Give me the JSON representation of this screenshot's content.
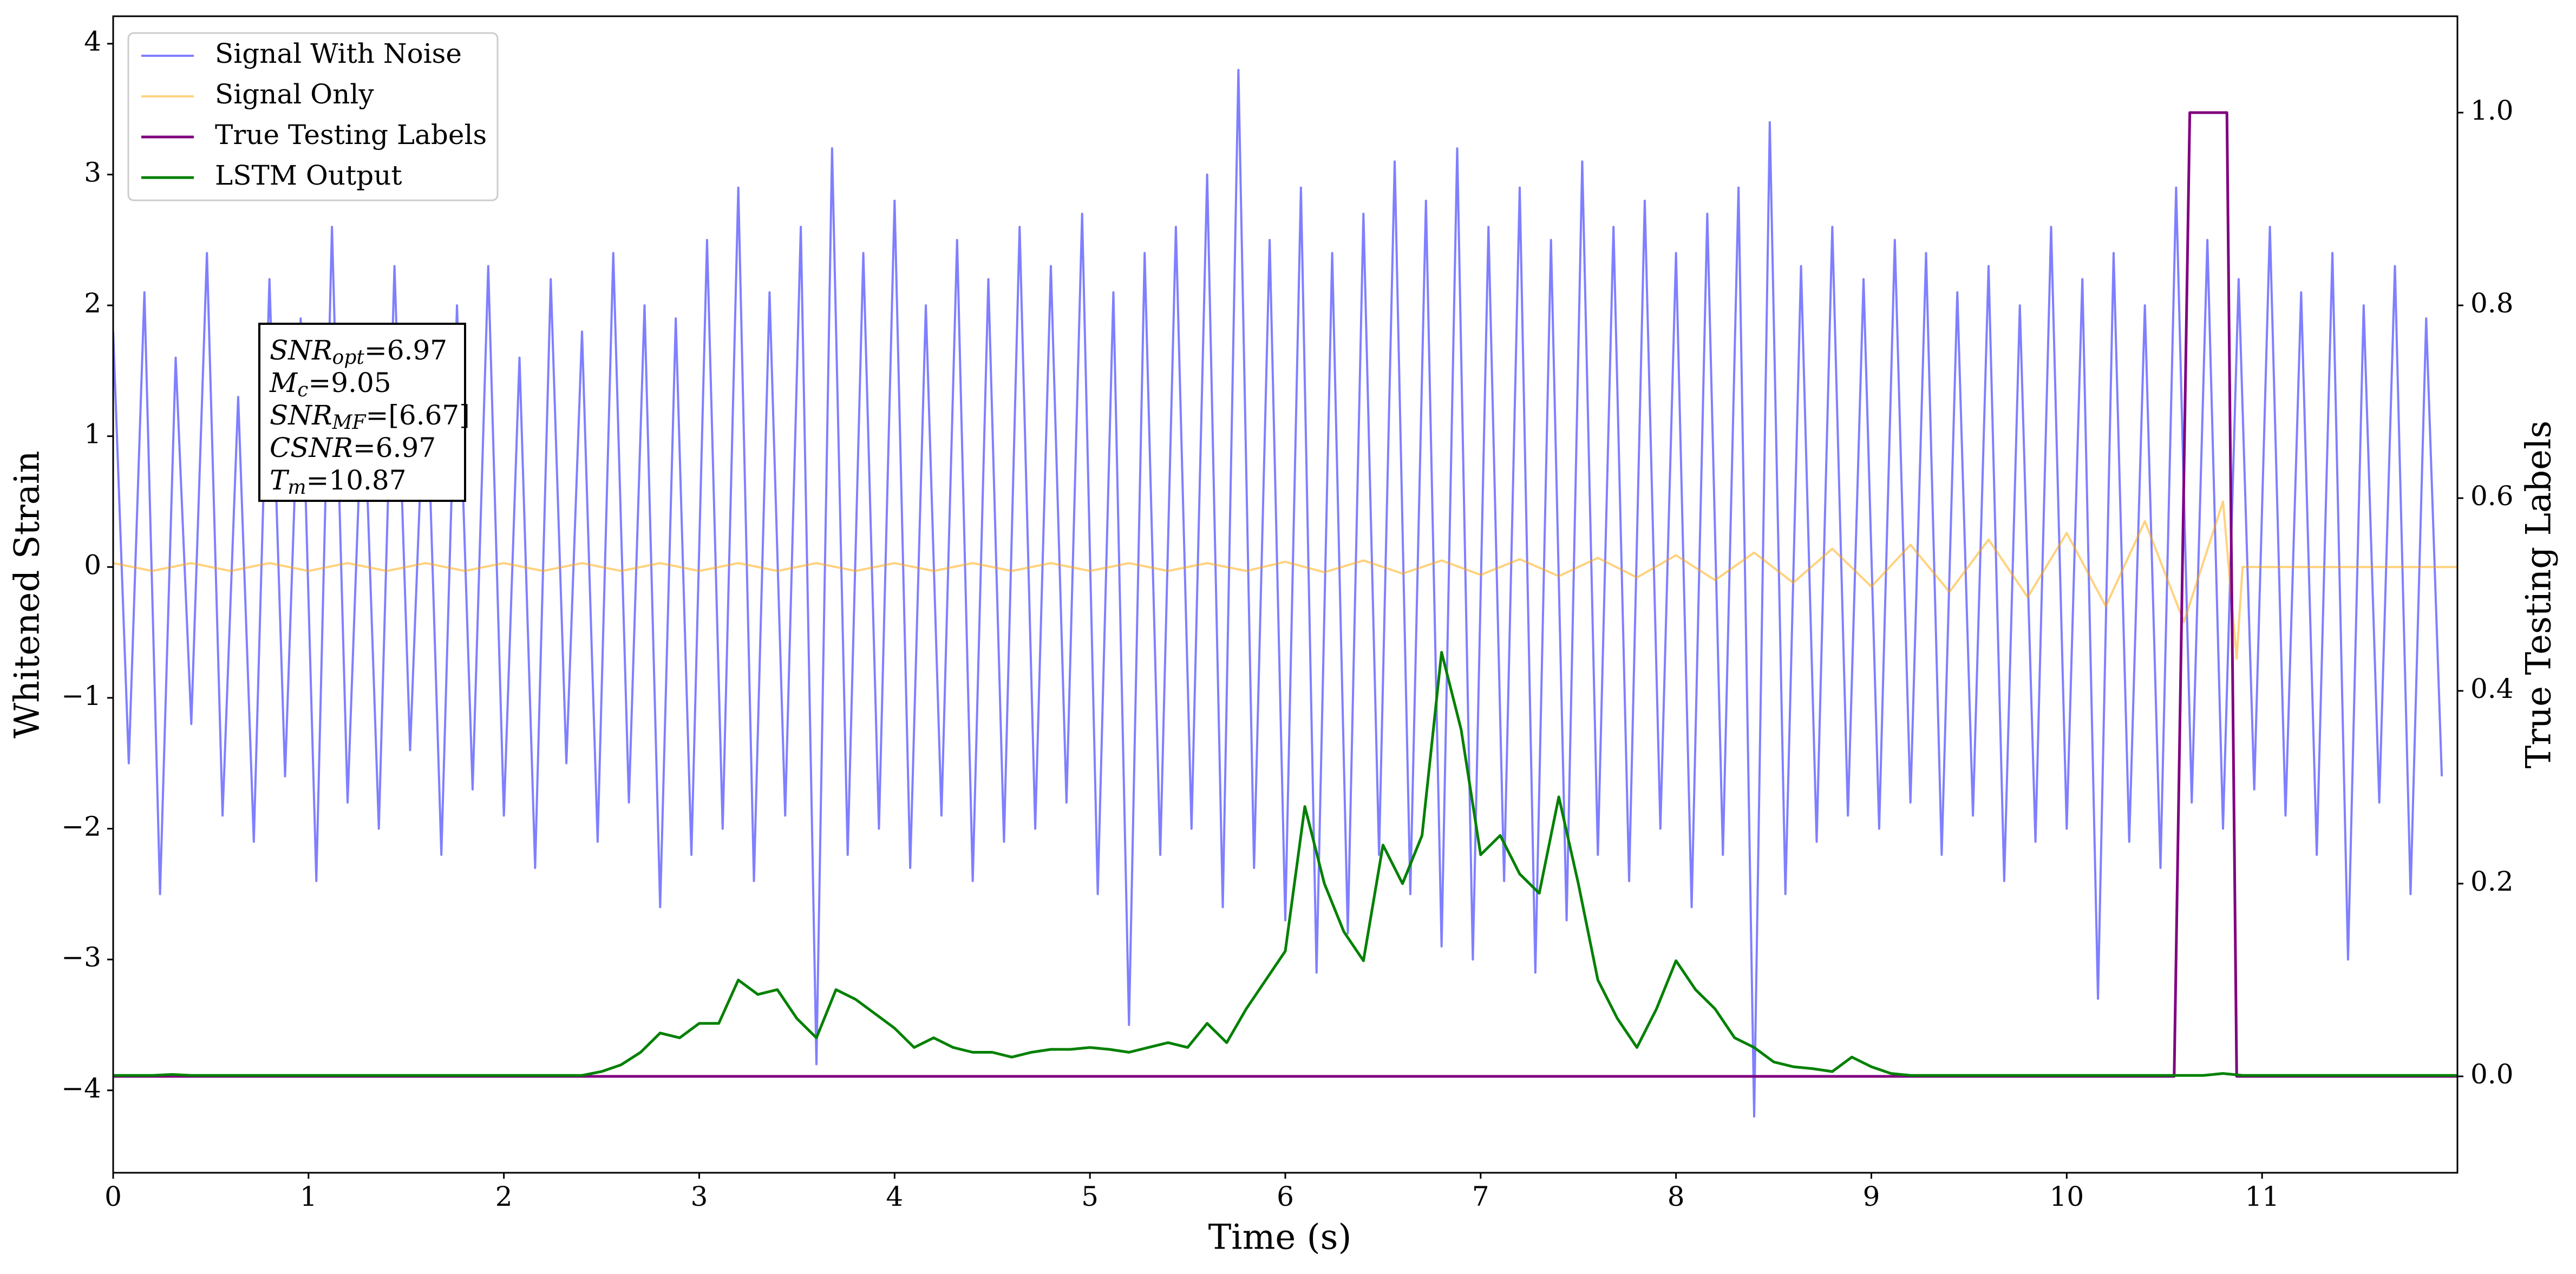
{
  "chart_data": {
    "type": "line",
    "x_label": "Time (s)",
    "y_label": "Whitened Strain",
    "y2_label": "True Testing Labels",
    "xlim": [
      0,
      12
    ],
    "xticks": [
      0,
      1,
      2,
      3,
      4,
      5,
      6,
      7,
      8,
      9,
      10,
      11
    ],
    "ylim": [
      -4.63,
      4.21
    ],
    "yticks": [
      {
        "value": -4,
        "label": "−4"
      },
      {
        "value": -3,
        "label": "−3"
      },
      {
        "value": -2,
        "label": "−2"
      },
      {
        "value": -1,
        "label": "−1"
      },
      0,
      1,
      2,
      3,
      4
    ],
    "y2lim": [
      -0.1,
      1.1
    ],
    "y2ticks": [
      {
        "value": 0,
        "label": "0.0"
      },
      0.2,
      0.4,
      0.6,
      0.8,
      {
        "value": 1,
        "label": "1.0"
      }
    ],
    "grid": false,
    "legend": "upper left",
    "annotation": [
      {
        "symbol": "SNR",
        "sub": "opt",
        "text": "=6.97"
      },
      {
        "symbol": "M",
        "sub": "c",
        "text": "=9.05"
      },
      {
        "symbol": "SNR",
        "sub": "MF",
        "text": "=[6.67]"
      },
      {
        "symbol": "CSNR",
        "text": "=6.97"
      },
      {
        "symbol": "T",
        "sub": "m",
        "text": "=10.87"
      }
    ],
    "series": [
      {
        "name": "Signal With Noise",
        "color": "blue",
        "alpha": 0.5,
        "width": 4,
        "x": [
          0,
          0.08,
          0.16,
          0.24,
          0.32,
          0.4,
          0.48,
          0.56,
          0.64,
          0.72,
          0.8,
          0.88,
          0.96,
          1.04,
          1.12,
          1.2,
          1.28,
          1.36,
          1.44,
          1.52,
          1.6,
          1.68,
          1.76,
          1.84,
          1.92,
          2,
          2.08,
          2.16,
          2.24,
          2.32,
          2.4,
          2.48,
          2.56,
          2.64,
          2.72,
          2.8,
          2.88,
          2.96,
          3.04,
          3.12,
          3.2,
          3.28,
          3.36,
          3.44,
          3.52,
          3.6,
          3.68,
          3.76,
          3.84,
          3.92,
          4,
          4.08,
          4.16,
          4.24,
          4.32,
          4.4,
          4.48,
          4.56,
          4.64,
          4.72,
          4.8,
          4.88,
          4.96,
          5.04,
          5.12,
          5.2,
          5.28,
          5.36,
          5.44,
          5.52,
          5.6,
          5.68,
          5.76,
          5.84,
          5.92,
          6,
          6.08,
          6.16,
          6.24,
          6.32,
          6.4,
          6.48,
          6.56,
          6.64,
          6.72,
          6.8,
          6.88,
          6.96,
          7.04,
          7.12,
          7.2,
          7.28,
          7.36,
          7.44,
          7.52,
          7.6,
          7.68,
          7.76,
          7.84,
          7.92,
          8,
          8.08,
          8.16,
          8.24,
          8.32,
          8.4,
          8.48,
          8.56,
          8.64,
          8.72,
          8.8,
          8.88,
          8.96,
          9.04,
          9.12,
          9.2,
          9.28,
          9.36,
          9.44,
          9.52,
          9.6,
          9.68,
          9.76,
          9.84,
          9.92,
          10,
          10.08,
          10.16,
          10.24,
          10.32,
          10.4,
          10.48,
          10.56,
          10.64,
          10.72,
          10.8,
          10.88,
          10.96,
          11.04,
          11.12,
          11.2,
          11.28,
          11.36,
          11.44,
          11.52,
          11.6,
          11.68,
          11.76,
          11.84,
          11.92
        ],
        "values": [
          1.8,
          -1.5,
          2.1,
          -2.5,
          1.6,
          -1.2,
          2.4,
          -1.9,
          1.3,
          -2.1,
          2.2,
          -1.6,
          1.9,
          -2.4,
          2.6,
          -1.8,
          1.5,
          -2.0,
          2.3,
          -1.4,
          1.7,
          -2.2,
          2.0,
          -1.7,
          2.3,
          -1.9,
          1.6,
          -2.3,
          2.2,
          -1.5,
          1.8,
          -2.1,
          2.4,
          -1.8,
          2.0,
          -2.6,
          1.9,
          -2.2,
          2.5,
          -2.0,
          2.9,
          -2.4,
          2.1,
          -1.9,
          2.6,
          -3.8,
          3.2,
          -2.2,
          2.4,
          -2.0,
          2.8,
          -2.3,
          2.0,
          -1.9,
          2.5,
          -2.4,
          2.2,
          -2.1,
          2.6,
          -2.0,
          2.3,
          -1.8,
          2.7,
          -2.5,
          2.1,
          -3.5,
          2.4,
          -2.2,
          2.6,
          -2.0,
          3.0,
          -2.6,
          3.8,
          -2.3,
          2.5,
          -2.7,
          2.9,
          -3.1,
          2.4,
          -2.8,
          2.7,
          -2.2,
          3.1,
          -2.5,
          2.8,
          -2.9,
          3.2,
          -3.0,
          2.6,
          -2.4,
          2.9,
          -3.1,
          2.5,
          -2.7,
          3.1,
          -2.2,
          2.6,
          -2.4,
          2.8,
          -2.0,
          2.4,
          -2.6,
          2.7,
          -2.2,
          2.9,
          -4.2,
          3.4,
          -2.5,
          2.3,
          -2.1,
          2.6,
          -1.9,
          2.2,
          -2.0,
          2.5,
          -1.8,
          2.4,
          -2.2,
          2.1,
          -1.9,
          2.3,
          -2.4,
          2.0,
          -2.1,
          2.6,
          -2.0,
          2.2,
          -3.3,
          2.4,
          -2.1,
          2.0,
          -2.3,
          2.9,
          -1.8,
          2.5,
          -2.0,
          2.2,
          -1.7,
          2.6,
          -1.9,
          2.1,
          -2.2,
          2.4,
          -3.0,
          2.0,
          -1.8,
          2.3,
          -2.5,
          1.9,
          -1.6
        ]
      },
      {
        "name": "Signal Only",
        "color": "orange",
        "alpha": 0.5,
        "width": 4,
        "x": [
          0,
          0.2,
          0.4,
          0.6,
          0.8,
          1,
          1.2,
          1.4,
          1.6,
          1.8,
          2,
          2.2,
          2.4,
          2.6,
          2.8,
          3,
          3.2,
          3.4,
          3.6,
          3.8,
          4,
          4.2,
          4.4,
          4.6,
          4.8,
          5,
          5.2,
          5.4,
          5.6,
          5.8,
          6,
          6.2,
          6.4,
          6.6,
          6.8,
          7,
          7.2,
          7.4,
          7.6,
          7.8,
          8,
          8.2,
          8.4,
          8.6,
          8.8,
          9,
          9.2,
          9.4,
          9.6,
          9.8,
          10,
          10.2,
          10.4,
          10.6,
          10.8,
          10.87,
          10.9,
          12
        ],
        "values": [
          0.03,
          -0.03,
          0.03,
          -0.03,
          0.03,
          -0.03,
          0.03,
          -0.03,
          0.03,
          -0.03,
          0.03,
          -0.03,
          0.03,
          -0.03,
          0.03,
          -0.03,
          0.03,
          -0.03,
          0.03,
          -0.03,
          0.03,
          -0.03,
          0.03,
          -0.03,
          0.03,
          -0.03,
          0.03,
          -0.03,
          0.03,
          -0.03,
          0.04,
          -0.04,
          0.05,
          -0.05,
          0.05,
          -0.06,
          0.06,
          -0.07,
          0.07,
          -0.08,
          0.09,
          -0.1,
          0.11,
          -0.12,
          0.14,
          -0.15,
          0.17,
          -0.19,
          0.21,
          -0.23,
          0.26,
          -0.3,
          0.35,
          -0.42,
          0.5,
          -0.7,
          0,
          0
        ]
      },
      {
        "name": "True Testing Labels",
        "color": "purple",
        "alpha": 1,
        "width": 5,
        "axis": "y2",
        "x": [
          0,
          10.55,
          10.63,
          10.82,
          10.87,
          12
        ],
        "values": [
          0,
          0,
          1,
          1,
          0,
          0
        ]
      },
      {
        "name": "LSTM Output",
        "color": "green",
        "alpha": 1,
        "width": 5,
        "axis": "y2",
        "x": [
          0,
          0.1,
          0.2,
          0.3,
          0.4,
          0.5,
          0.6,
          0.7,
          0.8,
          0.9,
          1,
          1.1,
          1.2,
          1.3,
          1.4,
          1.5,
          1.6,
          1.7,
          1.8,
          1.9,
          2,
          2.1,
          2.2,
          2.3,
          2.4,
          2.5,
          2.6,
          2.7,
          2.8,
          2.9,
          3,
          3.1,
          3.2,
          3.3,
          3.4,
          3.5,
          3.6,
          3.7,
          3.8,
          3.9,
          4,
          4.1,
          4.2,
          4.3,
          4.4,
          4.5,
          4.6,
          4.7,
          4.8,
          4.9,
          5,
          5.1,
          5.2,
          5.3,
          5.4,
          5.5,
          5.6,
          5.7,
          5.8,
          5.9,
          6,
          6.1,
          6.2,
          6.3,
          6.4,
          6.5,
          6.6,
          6.7,
          6.8,
          6.9,
          7,
          7.1,
          7.2,
          7.3,
          7.4,
          7.5,
          7.6,
          7.7,
          7.8,
          7.9,
          8,
          8.1,
          8.2,
          8.3,
          8.4,
          8.5,
          8.6,
          8.7,
          8.8,
          8.9,
          9,
          9.1,
          9.2,
          9.3,
          9.4,
          9.5,
          9.6,
          9.7,
          9.8,
          9.9,
          10,
          10.1,
          10.2,
          10.3,
          10.4,
          10.5,
          10.6,
          10.7,
          10.8,
          10.9,
          11,
          11.1,
          11.2,
          11.3,
          11.4,
          11.5,
          11.6,
          11.7,
          11.8,
          11.9,
          12
        ],
        "values": [
          0.001,
          0.001,
          0.001,
          0.002,
          0.001,
          0.001,
          0.001,
          0.001,
          0.001,
          0.001,
          0.001,
          0.001,
          0.001,
          0.001,
          0.001,
          0.001,
          0.001,
          0.001,
          0.001,
          0.001,
          0.001,
          0.001,
          0.001,
          0.001,
          0.001,
          0.005,
          0.012,
          0.025,
          0.045,
          0.04,
          0.055,
          0.055,
          0.1,
          0.085,
          0.09,
          0.06,
          0.04,
          0.09,
          0.08,
          0.065,
          0.05,
          0.03,
          0.04,
          0.03,
          0.025,
          0.025,
          0.02,
          0.025,
          0.028,
          0.028,
          0.03,
          0.028,
          0.025,
          0.03,
          0.035,
          0.03,
          0.055,
          0.035,
          0.07,
          0.1,
          0.13,
          0.28,
          0.2,
          0.15,
          0.12,
          0.24,
          0.2,
          0.25,
          0.44,
          0.36,
          0.23,
          0.25,
          0.21,
          0.19,
          0.29,
          0.2,
          0.1,
          0.06,
          0.03,
          0.07,
          0.12,
          0.09,
          0.07,
          0.04,
          0.03,
          0.015,
          0.01,
          0.008,
          0.005,
          0.02,
          0.01,
          0.003,
          0.001,
          0.001,
          0.001,
          0.001,
          0.001,
          0.001,
          0.001,
          0.001,
          0.001,
          0.001,
          0.001,
          0.001,
          0.001,
          0.001,
          0.001,
          0.001,
          0.003,
          0.001,
          0.001,
          0.001,
          0.001,
          0.001,
          0.001,
          0.001,
          0.001,
          0.001,
          0.001,
          0.001,
          0.001
        ]
      }
    ]
  }
}
